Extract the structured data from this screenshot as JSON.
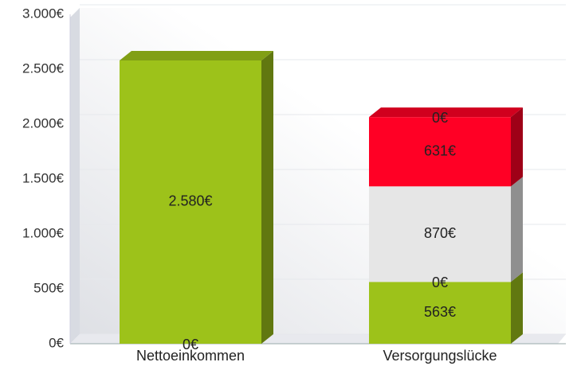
{
  "chart_data": {
    "type": "bar3d_stacked",
    "categories": [
      "Nettoeinkommen",
      "Versorgungslücke"
    ],
    "series": [
      {
        "color": "#9dc21a",
        "values": [
          0,
          563
        ],
        "value_labels": [
          "0€",
          "563€"
        ]
      },
      {
        "color": "#9dc21a",
        "values": [
          2580,
          0
        ],
        "value_labels": [
          "2.580€",
          "0€"
        ]
      },
      {
        "color": "#e6e6e6",
        "values": [
          null,
          870
        ],
        "value_labels": [
          null,
          "870€"
        ]
      },
      {
        "color": "#ff0025",
        "values": [
          null,
          631
        ],
        "value_labels": [
          null,
          "631€"
        ]
      },
      {
        "color": "#ff0025",
        "values": [
          null,
          0
        ],
        "value_labels": [
          null,
          "0€"
        ]
      }
    ],
    "ylim": [
      0,
      3000
    ],
    "yticks": [
      {
        "value": 0,
        "label": "0€"
      },
      {
        "value": 500,
        "label": "500€"
      },
      {
        "value": 1000,
        "label": "1.000€"
      },
      {
        "value": 1500,
        "label": "1.500€"
      },
      {
        "value": 2000,
        "label": "2.000€"
      },
      {
        "value": 2500,
        "label": "2.500€"
      },
      {
        "value": 3000,
        "label": "3.000€"
      }
    ],
    "grid": true
  }
}
